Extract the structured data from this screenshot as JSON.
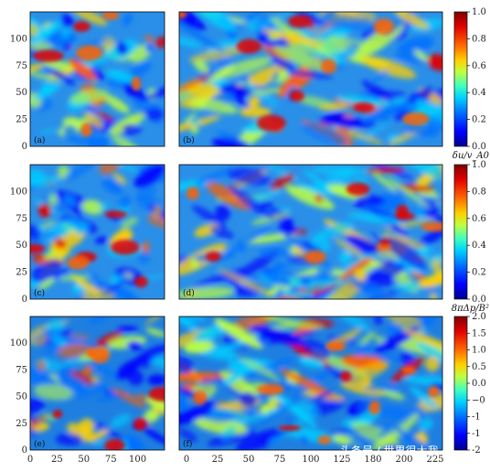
{
  "chart_data": [
    {
      "type": "heatmap",
      "rows": [
        {
          "panels": [
            {
              "label": "(a)",
              "xlim": [
                0,
                125
              ],
              "ylim": [
                0,
                125
              ],
              "show_x_ticks": false
            },
            {
              "label": "(b)",
              "xlim": [
                0,
                250
              ],
              "ylim": [
                0,
                125
              ],
              "show_x_ticks": false
            }
          ],
          "yticks": [
            "0",
            "25",
            "50",
            "75",
            "100"
          ],
          "colorbar": {
            "min": 0.0,
            "max": 1.0,
            "ticks": [
              "0.0",
              "0.2",
              "0.4",
              "0.6",
              "0.8",
              "1.0"
            ],
            "label": "δu/v_A0"
          }
        },
        {
          "panels": [
            {
              "label": "(c)",
              "xlim": [
                0,
                125
              ],
              "ylim": [
                0,
                125
              ],
              "show_x_ticks": false
            },
            {
              "label": "(d)",
              "xlim": [
                0,
                250
              ],
              "ylim": [
                0,
                125
              ],
              "show_x_ticks": false
            }
          ],
          "yticks": [
            "0",
            "25",
            "50",
            "75",
            "100"
          ],
          "colorbar": {
            "min": 0.0,
            "max": 1.0,
            "ticks": [
              "0.0",
              "0.2",
              "0.4",
              "0.6",
              "0.8",
              "1.0"
            ],
            "label": "8πΔp/B²"
          }
        },
        {
          "panels": [
            {
              "label": "(e)",
              "xlim": [
                0,
                125
              ],
              "ylim": [
                0,
                125
              ],
              "show_x_ticks": true
            },
            {
              "label": "(f)",
              "xlim": [
                0,
                250
              ],
              "ylim": [
                0,
                125
              ],
              "show_x_ticks": true
            }
          ],
          "yticks": [
            "0",
            "25",
            "50",
            "75",
            "100"
          ],
          "colorbar": {
            "min": -2.0,
            "max": 2.0,
            "ticks": [
              "-2",
              "-1",
              "-1",
              "−0",
              "0.0",
              "0.5",
              "1.0",
              "1.5",
              "2.0"
            ],
            "label": ""
          }
        }
      ],
      "xticks_left": [
        "0",
        "25",
        "50",
        "75",
        "100"
      ],
      "xticks_right": [
        "0",
        "25",
        "50",
        "75",
        "100",
        "125",
        "180",
        "200",
        "225"
      ],
      "colormap": [
        "#00008f",
        "#0000ff",
        "#0070ff",
        "#00d0ff",
        "#40ffbf",
        "#bfff40",
        "#ffd000",
        "#ff6000",
        "#e00000",
        "#800000"
      ]
    }
  ],
  "watermark": "头条号 / 世界很大我"
}
